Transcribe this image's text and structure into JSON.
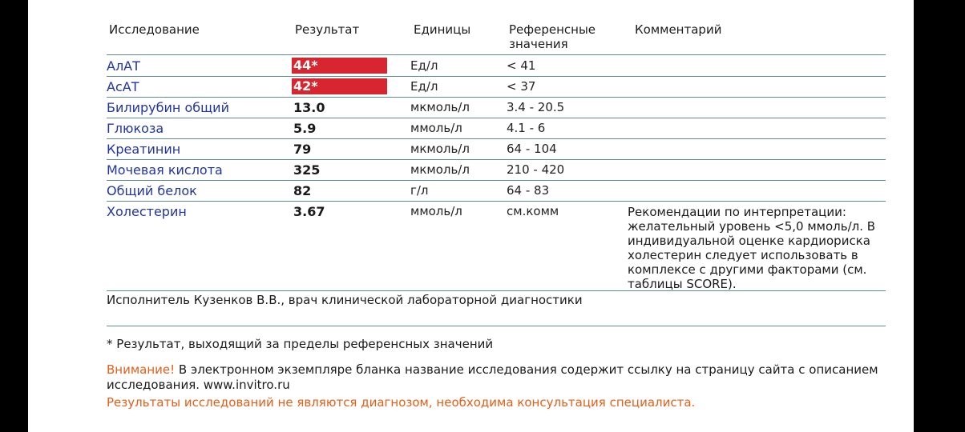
{
  "header": {
    "crumb": "",
    "col_test": "Исследование",
    "col_result": "Результат",
    "col_units": "Единицы",
    "col_ref_line1": "Референсные",
    "col_ref_line2": "значения",
    "col_comment": "Комментарий"
  },
  "rows": [
    {
      "name": "АлАТ",
      "result": "44*",
      "units": "Ед/л",
      "ref": "< 41",
      "flag": true
    },
    {
      "name": "АсАТ",
      "result": "42*",
      "units": "Ед/л",
      "ref": "< 37",
      "flag": true
    },
    {
      "name": "Билирубин общий",
      "result": "13.0",
      "units": "мкмоль/л",
      "ref": "3.4 - 20.5",
      "flag": false
    },
    {
      "name": "Глюкоза",
      "result": "5.9",
      "units": "ммоль/л",
      "ref": "4.1 - 6",
      "flag": false
    },
    {
      "name": "Креатинин",
      "result": "79",
      "units": "мкмоль/л",
      "ref": "64 - 104",
      "flag": false
    },
    {
      "name": "Мочевая кислота",
      "result": "325",
      "units": "мкмоль/л",
      "ref": "210 - 420",
      "flag": false
    },
    {
      "name": "Общий белок",
      "result": "82",
      "units": "г/л",
      "ref": "64 - 83",
      "flag": false
    },
    {
      "name": "Холестерин",
      "result": "3.67",
      "units": "ммоль/л",
      "ref": "см.комм",
      "flag": false
    }
  ],
  "cholesterol_comment": "Рекомендации по интерпретации: желательный уровень <5,0 ммоль/л. В индивидуальной оценке кардиориска холестерин следует использовать в комплексе с другими факторами (см. таблицы SCORE).",
  "performer": "Исполнитель Кузенков В.В., врач клинической лабораторной диагностики",
  "footnote": "* Результат, выходящий за пределы референсных значений",
  "warning_label": "Внимание!",
  "warning_text": " В электронном экземпляре бланка название исследования содержит ссылку на страницу сайта с описанием исследования. www.invitro.ru",
  "disclaimer": "Результаты исследований не являются диагнозом, необходима консультация специалиста.",
  "colors": {
    "flag_red": "#d7262f",
    "test_name_blue": "#2035a0",
    "rule_teal": "#5a8f8b",
    "warning_orange": "#e35f17"
  }
}
